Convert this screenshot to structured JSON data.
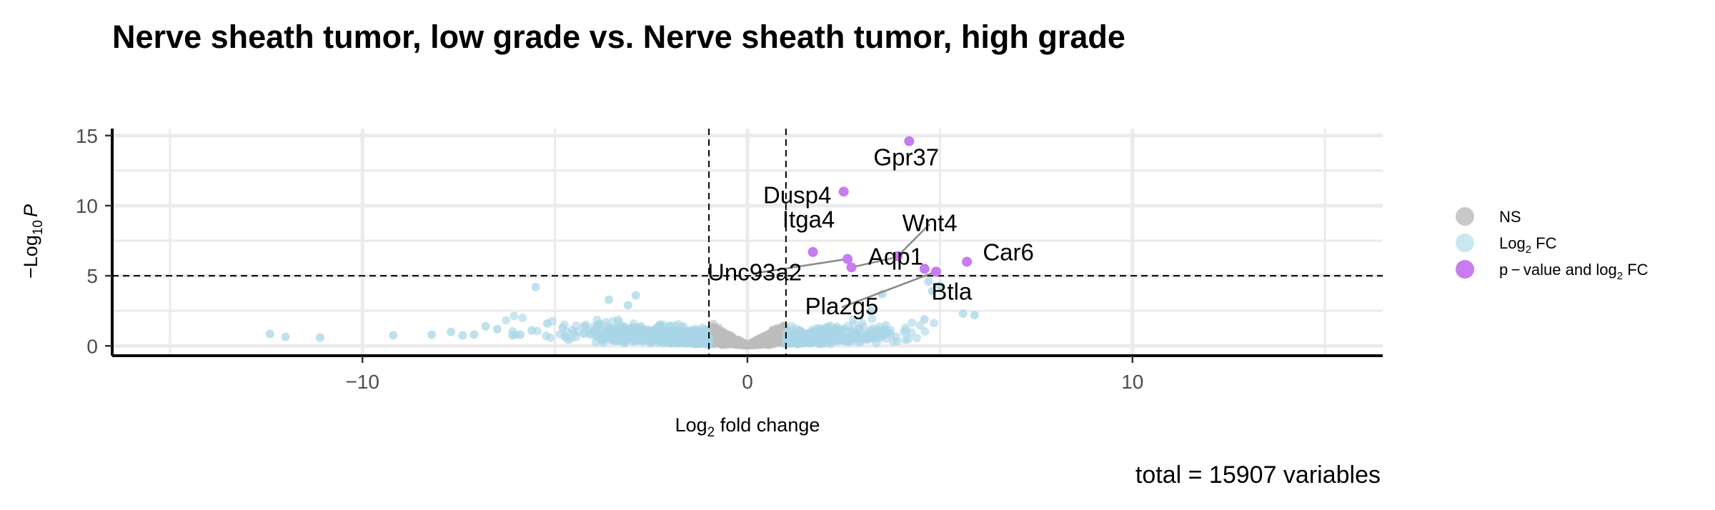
{
  "chart_data": {
    "type": "scatter",
    "title": "Nerve sheath tumor, low grade vs. Nerve sheath tumor, high grade",
    "xlabel": {
      "main": "Log",
      "sub": "2",
      "rest": " fold change"
    },
    "ylabel": {
      "minus": "−",
      "main": "Log",
      "sub": "10",
      "italic": "P"
    },
    "caption": "total = 15907 variables",
    "xlim": [
      -16.5,
      16.5
    ],
    "ylim": [
      -0.7,
      15.5
    ],
    "x_ticks": [
      -10,
      0,
      10
    ],
    "x_tick_labels": [
      "−10",
      "0",
      "10"
    ],
    "y_ticks": [
      0,
      5,
      10,
      15
    ],
    "y_tick_labels": [
      "0",
      "5",
      "10",
      "15"
    ],
    "fc_cutoff": 1,
    "p_cutoff_log10": 5,
    "grid": true,
    "legend_position": "right",
    "legend": [
      {
        "key": "NS",
        "label": {
          "main": "NS"
        },
        "color": "#c8c8c8"
      },
      {
        "key": "FC",
        "label": {
          "main": "Log",
          "sub": "2",
          "rest": " FC"
        },
        "color": "#cbe7f0"
      },
      {
        "key": "P_FC",
        "label": {
          "main": "p − value and log",
          "sub": "2",
          "rest": " FC"
        },
        "color": "#c77cf0"
      }
    ],
    "colors": {
      "NS": "#bdbdbd",
      "FC": "#a9d6e6",
      "P_FC": "#c77cf0"
    },
    "highlighted": [
      {
        "gene": "Gpr37",
        "x": 4.2,
        "y": 14.6
      },
      {
        "gene": "Dusp4",
        "x": 2.5,
        "y": 11.0
      },
      {
        "gene": "Itga4",
        "x": 1.7,
        "y": 6.7
      },
      {
        "gene": "Wnt4",
        "x": 3.9,
        "y": 6.4
      },
      {
        "gene": "Car6",
        "x": 5.7,
        "y": 6.0
      },
      {
        "gene": "Unc93a2",
        "x": 2.6,
        "y": 6.2
      },
      {
        "gene": "Aqp1",
        "x": 2.7,
        "y": 5.6
      },
      {
        "gene": "Btla",
        "x": 4.6,
        "y": 5.5
      },
      {
        "gene": "Pla2g5",
        "x": 4.9,
        "y": 5.3
      }
    ],
    "fc_outliers": [
      {
        "x": -12.4,
        "y": 0.85
      },
      {
        "x": -12.0,
        "y": 0.65
      },
      {
        "x": -11.1,
        "y": 0.6
      },
      {
        "x": -9.2,
        "y": 0.75
      },
      {
        "x": -8.2,
        "y": 0.8
      },
      {
        "x": -7.7,
        "y": 1.0
      },
      {
        "x": -7.4,
        "y": 0.75
      },
      {
        "x": -7.1,
        "y": 0.8
      },
      {
        "x": -6.8,
        "y": 1.4
      },
      {
        "x": -6.5,
        "y": 1.2
      },
      {
        "x": -6.1,
        "y": 0.75
      },
      {
        "x": -5.9,
        "y": 0.8
      },
      {
        "x": -5.6,
        "y": 1.1
      },
      {
        "x": -5.5,
        "y": 4.2
      },
      {
        "x": -5.2,
        "y": 1.6
      },
      {
        "x": -4.8,
        "y": 1.3
      },
      {
        "x": -3.6,
        "y": 3.3
      },
      {
        "x": -2.9,
        "y": 3.6
      },
      {
        "x": -3.1,
        "y": 2.9
      },
      {
        "x": 3.5,
        "y": 3.7
      },
      {
        "x": 4.8,
        "y": 3.9
      },
      {
        "x": 4.7,
        "y": 4.6
      },
      {
        "x": 5.0,
        "y": 4.3
      },
      {
        "x": 4.6,
        "y": 1.9
      },
      {
        "x": 5.6,
        "y": 2.3
      },
      {
        "x": 5.9,
        "y": 2.2
      },
      {
        "x": 3.2,
        "y": 2.5
      }
    ]
  }
}
